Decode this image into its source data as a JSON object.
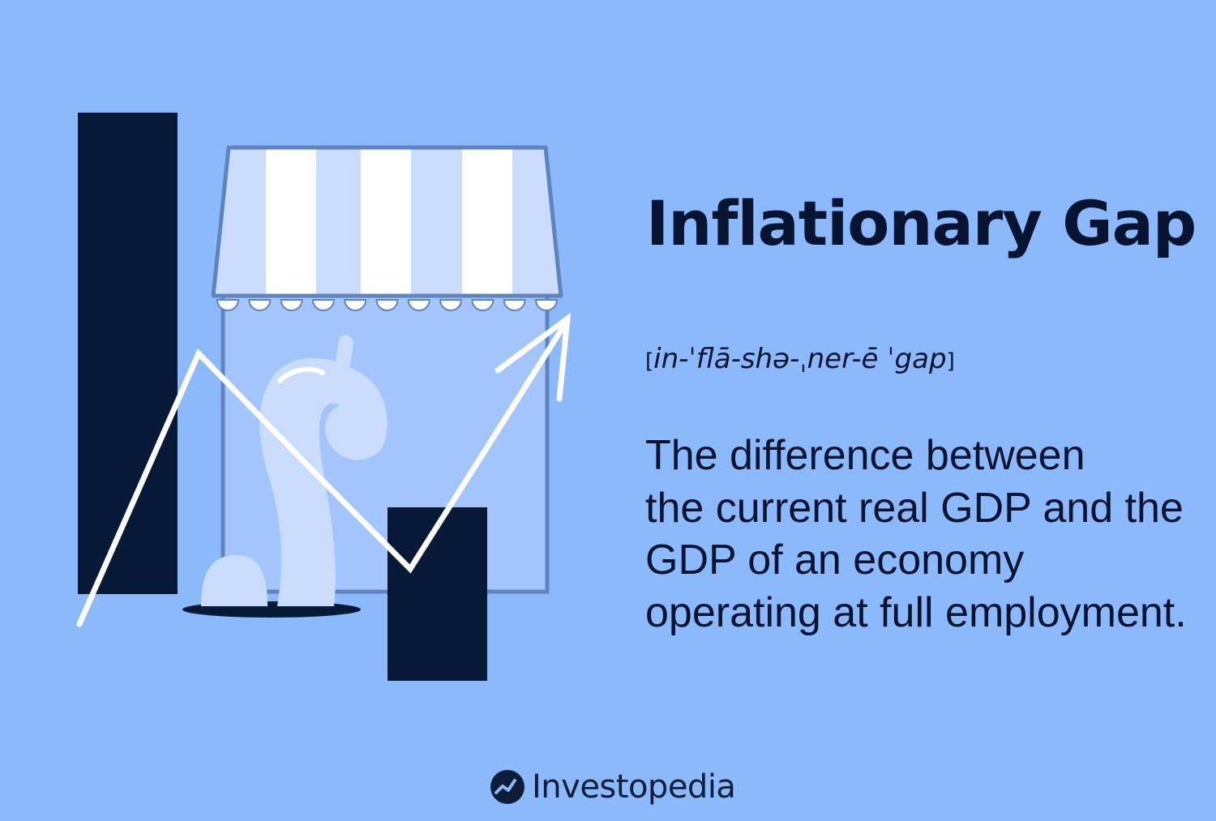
{
  "card": {
    "title": "Inflationary Gap",
    "pronunciation": {
      "open_bracket": "[",
      "text": "in-ˈflā-shə-ˌner-ē ˈgap",
      "close_bracket": "]"
    },
    "definition": {
      "lines": [
        "The difference between",
        "the current real GDP and the",
        "GDP of an economy",
        "operating at full employment."
      ]
    }
  },
  "brand": {
    "name": "Investopedia",
    "icon": "investopedia-logo-icon"
  },
  "illustration": {
    "icons": [
      "storefront-icon",
      "striped-awning-icon",
      "bar-icon",
      "trend-arrow-icon",
      "bag-icon"
    ]
  },
  "colors": {
    "background": "#8cb8fc",
    "navy": "#061a38",
    "text": "#061331",
    "white": "#ffffff",
    "light_blue": "#c9dcfb",
    "store_fill": "#a3c5fc",
    "store_outline": "#5f83c0"
  }
}
